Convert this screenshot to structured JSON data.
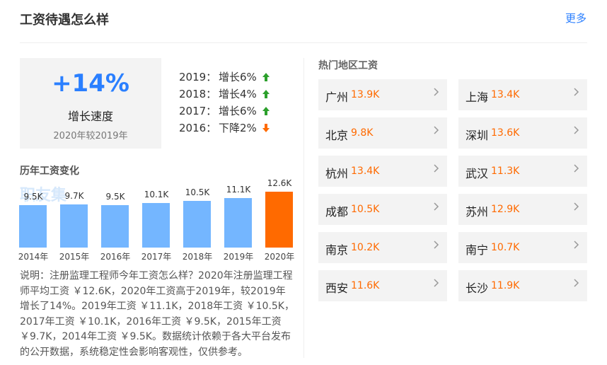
{
  "header": {
    "title": "工资待遇怎么样",
    "more": "更多"
  },
  "growth": {
    "value": "+14%",
    "label": "增长速度",
    "compare": "2020年较2019年",
    "history": [
      {
        "year": "2019：",
        "text": "增长6%",
        "trend": "up"
      },
      {
        "year": "2018：",
        "text": "增长4%",
        "trend": "up"
      },
      {
        "year": "2017：",
        "text": "增长6%",
        "trend": "up"
      },
      {
        "year": "2016：",
        "text": "下降2%",
        "trend": "down"
      }
    ]
  },
  "chart_data": {
    "type": "bar",
    "title": "历年工资变化",
    "watermark": "职友集",
    "categories": [
      "2014年",
      "2015年",
      "2016年",
      "2017年",
      "2018年",
      "2019年",
      "2020年"
    ],
    "values": [
      9.5,
      9.7,
      9.5,
      10.1,
      10.5,
      11.1,
      12.6
    ],
    "value_labels": [
      "9.5K",
      "9.7K",
      "9.5K",
      "10.1K",
      "10.5K",
      "11.1K",
      "12.6K"
    ],
    "colors": [
      "#74b6ff",
      "#74b6ff",
      "#74b6ff",
      "#74b6ff",
      "#74b6ff",
      "#74b6ff",
      "#ff6a00"
    ]
  },
  "description": "说明：注册监理工程师今年工资怎么样？2020年注册监理工程师平均工资 ￥12.6K，2020年工资高于2019年，较2019年增长了14%。2019年工资 ￥11.1K，2018年工资 ￥10.5K，2017年工资 ￥10.1K，2016年工资 ￥9.5K，2015年工资 ￥9.7K，2014年工资 ￥9.5K。数据统计依赖于各大平台发布的公开数据，系统稳定性会影响客观性，仅供参考。",
  "regions": {
    "title": "热门地区工资",
    "items": [
      {
        "city": "广州",
        "salary": "13.9K"
      },
      {
        "city": "上海",
        "salary": "13.4K"
      },
      {
        "city": "北京",
        "salary": "9.8K"
      },
      {
        "city": "深圳",
        "salary": "13.6K"
      },
      {
        "city": "杭州",
        "salary": "13.4K"
      },
      {
        "city": "武汉",
        "salary": "11.3K"
      },
      {
        "city": "成都",
        "salary": "10.5K"
      },
      {
        "city": "苏州",
        "salary": "12.9K"
      },
      {
        "city": "南京",
        "salary": "10.2K"
      },
      {
        "city": "南宁",
        "salary": "10.7K"
      },
      {
        "city": "西安",
        "salary": "11.6K"
      },
      {
        "city": "长沙",
        "salary": "11.9K"
      }
    ]
  }
}
